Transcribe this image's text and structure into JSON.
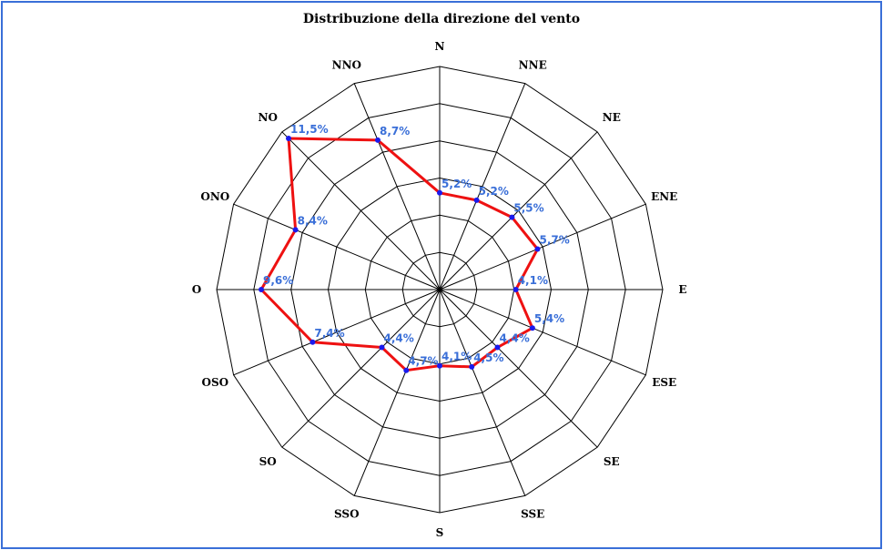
{
  "chart_data": {
    "type": "radar",
    "title": "Distribuzione della direzione del vento",
    "directions": [
      "N",
      "NNE",
      "NE",
      "ENE",
      "E",
      "ESE",
      "SE",
      "SSE",
      "S",
      "SSO",
      "SO",
      "OSO",
      "O",
      "ONO",
      "NO",
      "NNO"
    ],
    "values": [
      5.2,
      5.2,
      5.5,
      5.7,
      4.1,
      5.4,
      4.4,
      4.5,
      4.1,
      4.7,
      4.4,
      7.4,
      9.6,
      8.4,
      11.5,
      8.7
    ],
    "value_labels": [
      "5,2%",
      "5,2%",
      "5,5%",
      "5,7%",
      "4,1%",
      "5,4%",
      "4,4%",
      "4,5%",
      "4,1%",
      "4,7%",
      "4,4%",
      "7,4%",
      "9,6%",
      "8,4%",
      "11,5%",
      "8,7%"
    ],
    "rings": 6,
    "rmax": 12,
    "grid": true,
    "colors": {
      "line": "#ee1111",
      "point": "#1a1aee",
      "value_label": "#3a6fd8",
      "grid": "#000000",
      "frame": "#3a6fd8"
    }
  }
}
